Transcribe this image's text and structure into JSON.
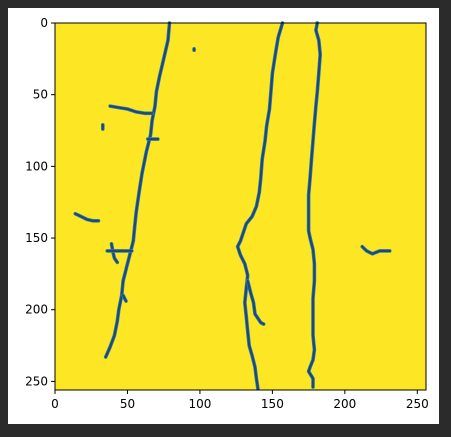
{
  "chart_data": {
    "type": "heatmap",
    "title": "",
    "xlabel": "",
    "ylabel": "",
    "xlim": [
      0,
      256
    ],
    "ylim": [
      256,
      0
    ],
    "x_ticks": [
      "0",
      "50",
      "100",
      "150",
      "200",
      "250"
    ],
    "y_ticks": [
      "0",
      "50",
      "100",
      "150",
      "200",
      "250"
    ],
    "grid": false,
    "colormap": "viridis",
    "background_color": "#fde725",
    "line_color": "#2a3f86",
    "line_edge_color": "#21918c",
    "traces": [
      {
        "points": [
          [
            79,
            0
          ],
          [
            78,
            12
          ],
          [
            75,
            25
          ],
          [
            72,
            38
          ],
          [
            70,
            48
          ],
          [
            69,
            58
          ],
          [
            67,
            68
          ],
          [
            66,
            78
          ],
          [
            63,
            90
          ],
          [
            60,
            105
          ],
          [
            58,
            118
          ],
          [
            56,
            132
          ],
          [
            55,
            142
          ],
          [
            54,
            152
          ],
          [
            52,
            160
          ],
          [
            49,
            172
          ],
          [
            47,
            180
          ],
          [
            46,
            190
          ],
          [
            44,
            200
          ],
          [
            43,
            208
          ],
          [
            41,
            218
          ],
          [
            38,
            226
          ],
          [
            35,
            233
          ]
        ]
      },
      {
        "points": [
          [
            38,
            58
          ],
          [
            44,
            59
          ],
          [
            50,
            60
          ],
          [
            56,
            62
          ],
          [
            62,
            63
          ],
          [
            67,
            63
          ]
        ]
      },
      {
        "points": [
          [
            47,
            190
          ],
          [
            49,
            194
          ]
        ]
      },
      {
        "points": [
          [
            64,
            81
          ],
          [
            71,
            81
          ]
        ]
      },
      {
        "points": [
          [
            14,
            133
          ],
          [
            18,
            135
          ],
          [
            22,
            137
          ],
          [
            26,
            138
          ],
          [
            30,
            138
          ]
        ]
      },
      {
        "points": [
          [
            39,
            154
          ],
          [
            40,
            160
          ],
          [
            41,
            164
          ],
          [
            43,
            167
          ]
        ]
      },
      {
        "points": [
          [
            36,
            159
          ],
          [
            44,
            159
          ],
          [
            50,
            159
          ],
          [
            53,
            159
          ]
        ]
      },
      {
        "points": [
          [
            157,
            0
          ],
          [
            154,
            10
          ],
          [
            152,
            22
          ],
          [
            150,
            35
          ],
          [
            149,
            48
          ],
          [
            148,
            60
          ],
          [
            146,
            72
          ],
          [
            145,
            82
          ],
          [
            143,
            95
          ],
          [
            142,
            108
          ],
          [
            141,
            118
          ],
          [
            139,
            128
          ],
          [
            136,
            135
          ],
          [
            132,
            140
          ],
          [
            130,
            146
          ],
          [
            128,
            152
          ],
          [
            126,
            156
          ],
          [
            128,
            162
          ],
          [
            131,
            168
          ],
          [
            133,
            176
          ],
          [
            132,
            185
          ],
          [
            131,
            195
          ],
          [
            132,
            205
          ],
          [
            133,
            215
          ],
          [
            134,
            225
          ],
          [
            136,
            232
          ],
          [
            138,
            240
          ],
          [
            139,
            248
          ],
          [
            140,
            255
          ]
        ]
      },
      {
        "points": [
          [
            133,
            180
          ],
          [
            135,
            188
          ],
          [
            137,
            195
          ],
          [
            138,
            203
          ],
          [
            142,
            209
          ],
          [
            144,
            210
          ]
        ]
      },
      {
        "points": [
          [
            181,
            0
          ],
          [
            180,
            5
          ],
          [
            182,
            12
          ],
          [
            183,
            22
          ],
          [
            182,
            35
          ],
          [
            181,
            48
          ],
          [
            180,
            58
          ],
          [
            179,
            70
          ],
          [
            178,
            82
          ],
          [
            177,
            95
          ],
          [
            176,
            108
          ],
          [
            175,
            120
          ],
          [
            175,
            135
          ],
          [
            175,
            145
          ],
          [
            176,
            150
          ],
          [
            178,
            158
          ],
          [
            179,
            168
          ],
          [
            179,
            180
          ],
          [
            178,
            192
          ],
          [
            178,
            205
          ],
          [
            178,
            218
          ],
          [
            179,
            228
          ],
          [
            178,
            235
          ],
          [
            176,
            240
          ],
          [
            175,
            243
          ],
          [
            178,
            248
          ],
          [
            178,
            254
          ]
        ]
      },
      {
        "points": [
          [
            212,
            156
          ],
          [
            215,
            159
          ],
          [
            219,
            161
          ],
          [
            224,
            159
          ],
          [
            231,
            159
          ]
        ]
      },
      {
        "points": [
          [
            96,
            18
          ],
          [
            96,
            19
          ]
        ]
      },
      {
        "points": [
          [
            33,
            71
          ],
          [
            33,
            74
          ]
        ]
      }
    ]
  }
}
